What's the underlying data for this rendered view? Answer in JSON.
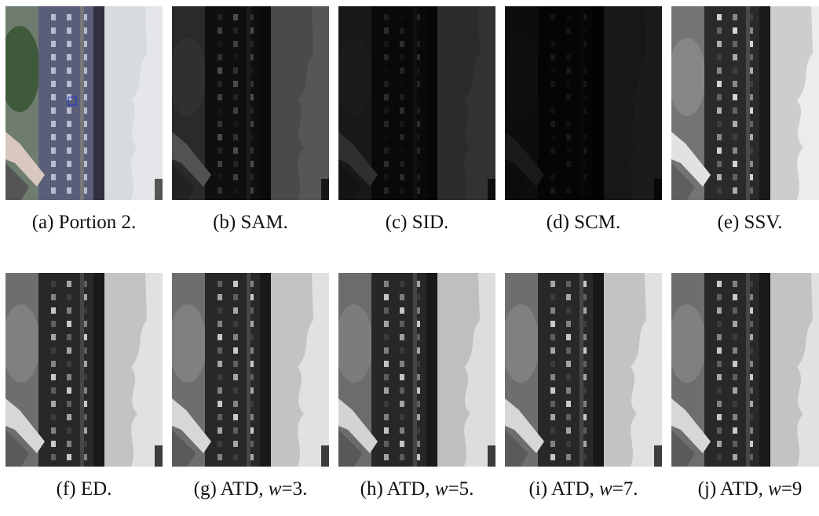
{
  "panels": [
    {
      "caption": [
        "(a) Portion 2."
      ]
    },
    {
      "caption": [
        "(b) SAM."
      ]
    },
    {
      "caption": [
        "(c) SID."
      ]
    },
    {
      "caption": [
        "(d) SCM."
      ]
    },
    {
      "caption": [
        "(e) SSV."
      ]
    },
    {
      "caption": [
        "(f) ED."
      ]
    },
    {
      "caption": [
        "(g) ATD, ",
        "w",
        "=3."
      ]
    },
    {
      "caption": [
        "(h) ATD, ",
        "w",
        "=5."
      ]
    },
    {
      "caption": [
        "(i) ATD, ",
        "w",
        "=7."
      ]
    },
    {
      "caption": [
        "(j) ATD, ",
        "w",
        "=9"
      ]
    }
  ]
}
